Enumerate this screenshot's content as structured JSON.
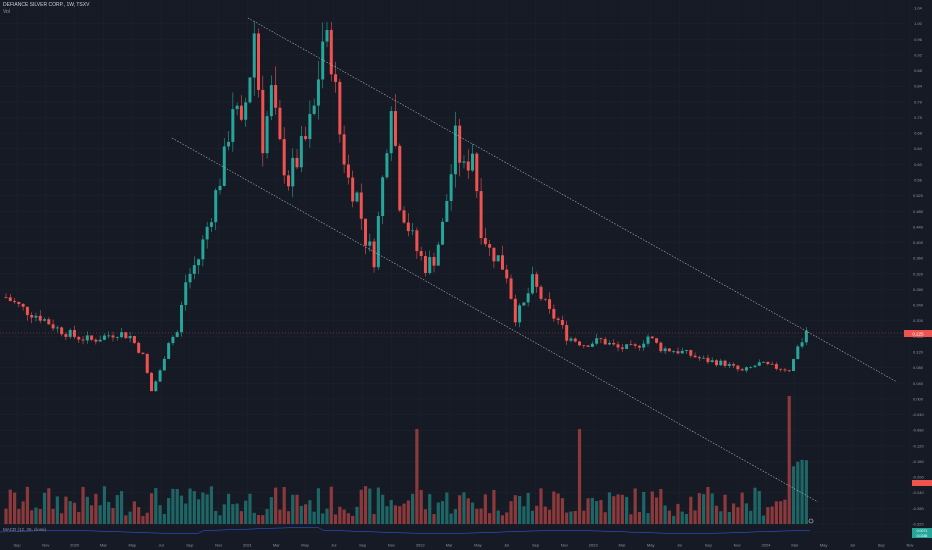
{
  "header": {
    "symbol_line": "DEFIANCE SILVER CORP., 1W, TSXV",
    "volume_label": "Vol"
  },
  "macd_label": "MACD (12, 26, close)",
  "colors": {
    "background": "#161a25",
    "up": "#26a69a",
    "down": "#ef5350",
    "grid": "#1f2330",
    "text": "#9598a1",
    "trendline": "#b2b5be"
  },
  "chart_data": {
    "type": "candlestick",
    "title": "DEFIANCE SILVER CORP., 1W, TSXV",
    "price_axis": {
      "labels": [
        "1.04",
        "1.00",
        "0.96",
        "0.92",
        "0.88",
        "0.84",
        "0.79",
        "0.75",
        "0.68",
        "0.64",
        "0.60",
        "0.56",
        "0.520",
        "0.480",
        "0.440",
        "0.400",
        "0.360",
        "0.320",
        "0.280",
        "0.240",
        "0.200",
        "0.160",
        "0.120",
        "0.080",
        "0.040",
        "0.000",
        "-0.040",
        "-0.080",
        "-0.120",
        "-0.160",
        "-0.200",
        "-0.240",
        "-0.280",
        "-0.320"
      ],
      "current_price_tag": "0.225",
      "macd_tag_1": "0.0071",
      "macd_tag_2": "0.0188"
    },
    "time_axis": {
      "labels": [
        "Sep",
        "Nov",
        "2020",
        "Mar",
        "May",
        "Jul",
        "Sep",
        "Nov",
        "2021",
        "Mar",
        "May",
        "Jul",
        "Sep",
        "Nov",
        "2022",
        "Mar",
        "May",
        "Jul",
        "Sep",
        "Nov",
        "2023",
        "Mar",
        "May",
        "Jul",
        "Sep",
        "Nov",
        "2024",
        "Mar",
        "May",
        "Jul",
        "Sep",
        "Nov"
      ]
    },
    "price_path": [
      [
        0,
        0.3
      ],
      [
        4,
        0.27
      ],
      [
        8,
        0.25
      ],
      [
        12,
        0.22
      ],
      [
        16,
        0.2
      ],
      [
        20,
        0.19
      ],
      [
        26,
        0.21
      ],
      [
        29,
        0.2
      ],
      [
        32,
        0.15
      ],
      [
        34,
        0.06
      ],
      [
        36,
        0.11
      ],
      [
        38,
        0.19
      ],
      [
        40,
        0.21
      ],
      [
        42,
        0.34
      ],
      [
        45,
        0.4
      ],
      [
        48,
        0.52
      ],
      [
        51,
        0.65
      ],
      [
        53,
        0.8
      ],
      [
        55,
        0.72
      ],
      [
        57,
        0.88
      ],
      [
        58,
        0.98
      ],
      [
        60,
        0.7
      ],
      [
        62,
        0.82
      ],
      [
        64,
        0.68
      ],
      [
        66,
        0.6
      ],
      [
        68,
        0.65
      ],
      [
        70,
        0.7
      ],
      [
        72,
        0.78
      ],
      [
        74,
        0.96
      ],
      [
        76,
        0.92
      ],
      [
        78,
        0.72
      ],
      [
        80,
        0.6
      ],
      [
        82,
        0.56
      ],
      [
        84,
        0.45
      ],
      [
        86,
        0.4
      ],
      [
        88,
        0.6
      ],
      [
        90,
        0.82
      ],
      [
        92,
        0.55
      ],
      [
        94,
        0.48
      ],
      [
        96,
        0.42
      ],
      [
        98,
        0.38
      ],
      [
        100,
        0.4
      ],
      [
        102,
        0.48
      ],
      [
        104,
        0.62
      ],
      [
        105,
        0.7
      ],
      [
        107,
        0.62
      ],
      [
        109,
        0.68
      ],
      [
        111,
        0.48
      ],
      [
        113,
        0.42
      ],
      [
        115,
        0.4
      ],
      [
        117,
        0.36
      ],
      [
        119,
        0.25
      ],
      [
        121,
        0.28
      ],
      [
        123,
        0.34
      ],
      [
        125,
        0.3
      ],
      [
        127,
        0.26
      ],
      [
        129,
        0.24
      ],
      [
        131,
        0.2
      ],
      [
        135,
        0.18
      ],
      [
        139,
        0.19
      ],
      [
        143,
        0.17
      ],
      [
        147,
        0.17
      ],
      [
        150,
        0.2
      ],
      [
        153,
        0.17
      ],
      [
        158,
        0.16
      ],
      [
        163,
        0.14
      ],
      [
        168,
        0.13
      ],
      [
        172,
        0.11
      ],
      [
        176,
        0.13
      ],
      [
        180,
        0.12
      ],
      [
        183,
        0.115
      ],
      [
        186,
        0.19
      ],
      [
        187,
        0.225
      ]
    ],
    "trendlines": "descending parallel channel from 2021 highs",
    "grid": true,
    "legend": "none"
  }
}
